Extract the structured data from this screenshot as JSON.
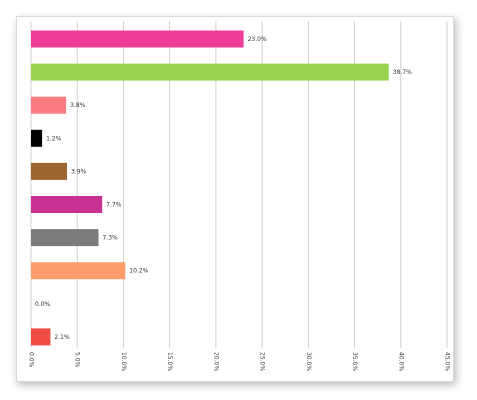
{
  "chart_data": {
    "type": "bar",
    "orientation": "horizontal",
    "values": [
      23.0,
      38.7,
      3.8,
      1.2,
      3.9,
      7.7,
      7.3,
      10.2,
      0.0,
      2.1
    ],
    "value_labels": [
      "23.0%",
      "38.7%",
      "3.8%",
      "1.2%",
      "3.9%",
      "7.7%",
      "7.3%",
      "10.2%",
      "0.0%",
      "2.1%"
    ],
    "bar_colors": [
      "#ee3d96",
      "#99d44f",
      "#fa7b80",
      "#000000",
      "#9b6631",
      "#c8318f",
      "#7b7b7b",
      "#fd9c6c",
      "#dddddd",
      "#ee4c44"
    ],
    "xlim": [
      0,
      45
    ],
    "x_ticks": [
      "0.0%",
      "5.0%",
      "10.0%",
      "15.0%",
      "20.0%",
      "25.0%",
      "30.0%",
      "35.0%",
      "40.0%",
      "45.0%"
    ],
    "grid": true,
    "title": "",
    "xlabel": "",
    "ylabel": ""
  }
}
